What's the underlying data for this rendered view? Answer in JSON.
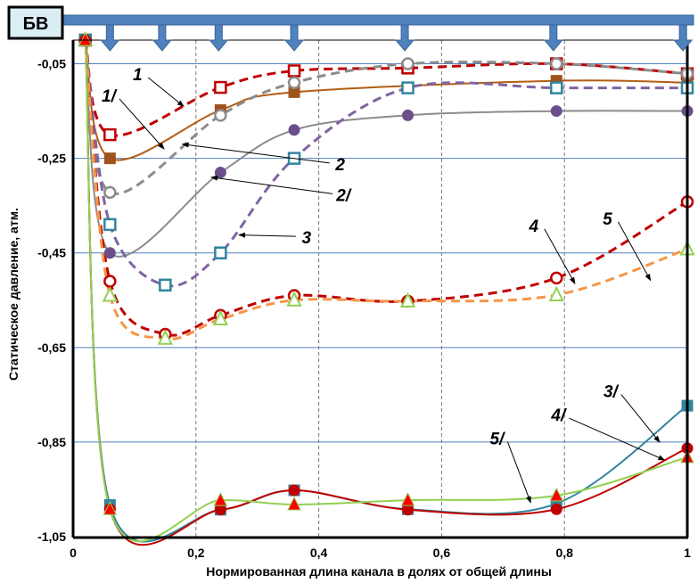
{
  "chart_data": {
    "type": "line",
    "title": "",
    "badge": "БВ",
    "xlabel": "Нормированная  длина канала в  долях от общей длины",
    "ylabel": "Статическое   давление,  атм.",
    "xlim": [
      0,
      1
    ],
    "ylim": [
      -1.05,
      0
    ],
    "xticks": [
      {
        "v": 0,
        "label": "0"
      },
      {
        "v": 0.2,
        "label": "0,2"
      },
      {
        "v": 0.4,
        "label": "0,4"
      },
      {
        "v": 0.6,
        "label": "0,6"
      },
      {
        "v": 0.8,
        "label": "0,8"
      },
      {
        "v": 1,
        "label": "1"
      }
    ],
    "yticks": [
      {
        "v": -0.05,
        "label": "-0,05"
      },
      {
        "v": -0.25,
        "label": "-0,25"
      },
      {
        "v": -0.45,
        "label": "-0,45"
      },
      {
        "v": -0.65,
        "label": "-0,65"
      },
      {
        "v": -0.85,
        "label": "-0,85"
      },
      {
        "v": -1.05,
        "label": "-1,05"
      }
    ],
    "inlet_arrows_x": [
      0.06,
      0.145,
      0.237,
      0.36,
      0.54,
      0.782,
      0.993
    ],
    "series": [
      {
        "name": "1",
        "line": "#c00000",
        "dash": true,
        "marker": "square-open",
        "mcolor": "#c00000",
        "x": [
          0.02,
          0.06,
          0.24,
          0.36,
          0.545,
          0.787,
          1
        ],
        "y": [
          0,
          -0.2,
          -0.1,
          -0.065,
          -0.059,
          -0.05,
          -0.071
        ]
      },
      {
        "name": "1/",
        "line": "#b35c12",
        "dash": false,
        "marker": "square",
        "mcolor": "#a0521c",
        "x": [
          0.02,
          0.06,
          0.24,
          0.36,
          0.787,
          1
        ],
        "y": [
          0,
          -0.25,
          -0.148,
          -0.11,
          -0.086,
          -0.09
        ]
      },
      {
        "name": "2",
        "line": "#8c8c8c",
        "dash": true,
        "marker": "circle-open",
        "mcolor": "#8c8c8c",
        "x": [
          0.02,
          0.06,
          0.24,
          0.36,
          0.545,
          0.787,
          1
        ],
        "y": [
          0,
          -0.322,
          -0.159,
          -0.09,
          -0.05,
          -0.05,
          -0.071
        ]
      },
      {
        "name": "2/",
        "line": "#8c8c8c",
        "dash": false,
        "marker": "circle",
        "mcolor": "#6a4f8a",
        "x": [
          0.02,
          0.06,
          0.24,
          0.36,
          0.545,
          0.787,
          1
        ],
        "y": [
          0,
          -0.45,
          -0.28,
          -0.19,
          -0.159,
          -0.15,
          -0.15
        ]
      },
      {
        "name": "3",
        "line": "#8064a2",
        "dash": true,
        "marker": "square-open",
        "mcolor": "#31859c",
        "x": [
          0.02,
          0.06,
          0.15,
          0.24,
          0.36,
          0.545,
          0.787,
          1
        ],
        "y": [
          0,
          -0.39,
          -0.518,
          -0.45,
          -0.25,
          -0.101,
          -0.101,
          -0.101
        ]
      },
      {
        "name": "4",
        "line": "#c00000",
        "dash": true,
        "marker": "circle-open",
        "mcolor": "#c00000",
        "x": [
          0.02,
          0.06,
          0.15,
          0.24,
          0.36,
          0.545,
          0.787,
          1
        ],
        "y": [
          0,
          -0.51,
          -0.622,
          -0.582,
          -0.54,
          -0.552,
          -0.503,
          -0.342
        ]
      },
      {
        "name": "5",
        "line": "#f79646",
        "dash": true,
        "marker": "triangle-open",
        "mcolor": "#92d050",
        "x": [
          0.02,
          0.06,
          0.15,
          0.24,
          0.36,
          0.545,
          0.787,
          1
        ],
        "y": [
          0,
          -0.54,
          -0.631,
          -0.59,
          -0.55,
          -0.552,
          -0.539,
          -0.442
        ]
      },
      {
        "name": "3/",
        "line": "#31859c",
        "dash": false,
        "marker": "square",
        "mcolor": "#31859c",
        "x": [
          0.02,
          0.06,
          0.24,
          0.36,
          0.545,
          0.787,
          1
        ],
        "y": [
          0,
          -0.983,
          -0.993,
          -0.952,
          -0.992,
          -0.98,
          -0.773
        ]
      },
      {
        "name": "4/",
        "line": "#c00000",
        "dash": false,
        "marker": "circle",
        "mcolor": "#c00000",
        "x": [
          0.02,
          0.06,
          0.24,
          0.36,
          0.545,
          0.787,
          1
        ],
        "y": [
          0,
          -0.992,
          -0.993,
          -0.952,
          -0.993,
          -0.992,
          -0.863
        ]
      },
      {
        "name": "5/",
        "line": "#92d050",
        "dash": false,
        "marker": "triangle",
        "mcolor": "#ff0000",
        "x": [
          0.02,
          0.06,
          0.24,
          0.36,
          0.545,
          0.787,
          1
        ],
        "y": [
          0,
          -0.992,
          -0.973,
          -0.982,
          -0.973,
          -0.963,
          -0.882
        ]
      }
    ],
    "annotations": [
      {
        "text": "1",
        "tx": 0.105,
        "ty": -0.085,
        "ax": 0.18,
        "ay": -0.14
      },
      {
        "text": "1/",
        "tx": 0.058,
        "ty": -0.13,
        "ax": 0.148,
        "ay": -0.23
      },
      {
        "text": "2",
        "tx": 0.435,
        "ty": -0.275,
        "ax": 0.178,
        "ay": -0.22
      },
      {
        "text": "2/",
        "tx": 0.44,
        "ty": -0.34,
        "ax": 0.225,
        "ay": -0.29
      },
      {
        "text": "3",
        "tx": 0.38,
        "ty": -0.43,
        "ax": 0.27,
        "ay": -0.412
      },
      {
        "text": "4",
        "tx": 0.75,
        "ty": -0.405,
        "ax": 0.817,
        "ay": -0.515
      },
      {
        "text": "5",
        "tx": 0.87,
        "ty": -0.39,
        "ax": 0.94,
        "ay": -0.508
      },
      {
        "text": "3/",
        "tx": 0.875,
        "ty": -0.755,
        "ax": 0.955,
        "ay": -0.85
      },
      {
        "text": "4/",
        "tx": 0.79,
        "ty": -0.805,
        "ax": 0.963,
        "ay": -0.888
      },
      {
        "text": "5/",
        "tx": 0.69,
        "ty": -0.855,
        "ax": 0.745,
        "ay": -0.978
      }
    ]
  }
}
